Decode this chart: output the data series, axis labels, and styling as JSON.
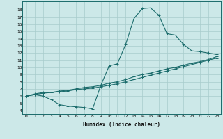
{
  "xlabel": "Humidex (Indice chaleur)",
  "xlim": [
    -0.5,
    23.5
  ],
  "ylim": [
    3.5,
    19.2
  ],
  "xticks": [
    0,
    1,
    2,
    3,
    4,
    5,
    6,
    7,
    8,
    9,
    10,
    11,
    12,
    13,
    14,
    15,
    16,
    17,
    18,
    19,
    20,
    21,
    22,
    23
  ],
  "yticks": [
    4,
    5,
    6,
    7,
    8,
    9,
    10,
    11,
    12,
    13,
    14,
    15,
    16,
    17,
    18
  ],
  "background_color": "#cce8e8",
  "line_color": "#1a6b6b",
  "grid_color": "#a8cccc",
  "line1_x": [
    0,
    1,
    2,
    3,
    4,
    5,
    6,
    7,
    8,
    9,
    10,
    11,
    12,
    13,
    14,
    15,
    16,
    17,
    18,
    19,
    20,
    21,
    22,
    23
  ],
  "line1_y": [
    6.0,
    6.2,
    6.0,
    5.5,
    4.8,
    4.6,
    4.5,
    4.4,
    4.2,
    7.5,
    10.2,
    10.5,
    13.2,
    16.8,
    18.2,
    18.3,
    17.3,
    14.7,
    14.5,
    13.2,
    12.3,
    12.2,
    12.0,
    11.8
  ],
  "line2_x": [
    0,
    1,
    2,
    3,
    4,
    5,
    6,
    7,
    8,
    9,
    10,
    11,
    12,
    13,
    14,
    15,
    16,
    17,
    18,
    19,
    20,
    21,
    22,
    23
  ],
  "line2_y": [
    6.0,
    6.3,
    6.5,
    6.5,
    6.7,
    6.8,
    7.0,
    7.2,
    7.3,
    7.5,
    7.8,
    8.0,
    8.3,
    8.7,
    9.0,
    9.2,
    9.5,
    9.8,
    10.0,
    10.3,
    10.6,
    10.8,
    11.1,
    11.5
  ],
  "line3_x": [
    0,
    1,
    2,
    3,
    4,
    5,
    6,
    7,
    8,
    9,
    10,
    11,
    12,
    13,
    14,
    15,
    16,
    17,
    18,
    19,
    20,
    21,
    22,
    23
  ],
  "line3_y": [
    6.0,
    6.2,
    6.4,
    6.5,
    6.6,
    6.7,
    6.9,
    7.0,
    7.1,
    7.3,
    7.5,
    7.7,
    8.0,
    8.3,
    8.6,
    8.9,
    9.2,
    9.5,
    9.8,
    10.1,
    10.4,
    10.7,
    11.0,
    11.3
  ]
}
